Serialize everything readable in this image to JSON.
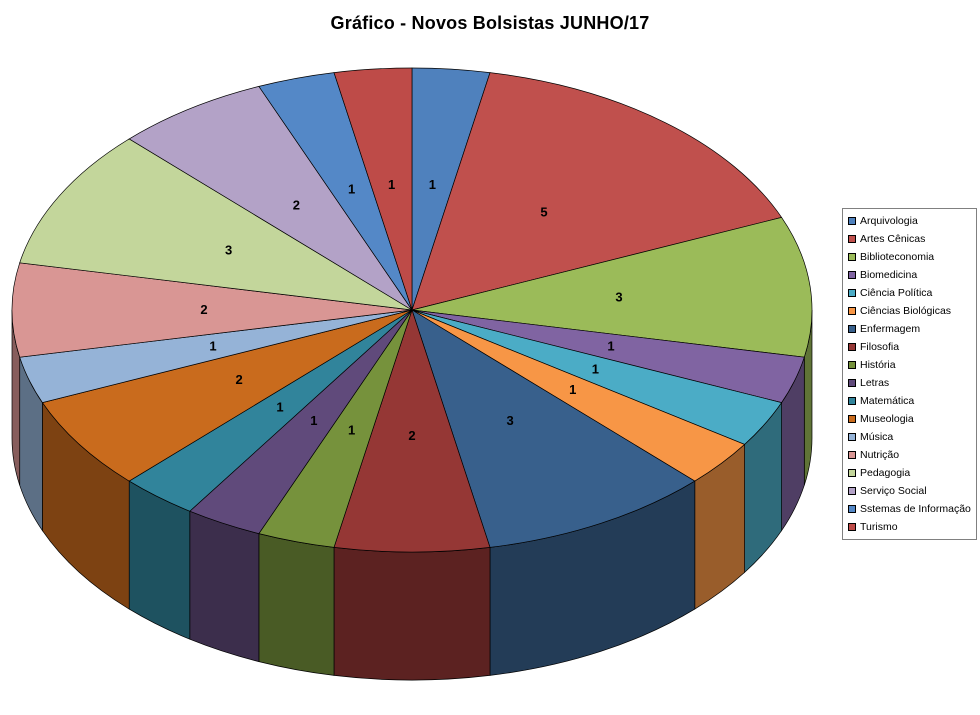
{
  "chart_data": {
    "type": "pie",
    "style": "3d",
    "title": "Gráfico - Novos Bolsistas JUNHO/17",
    "start_angle_deg": 0,
    "direction": "clockwise",
    "legend_position": "right",
    "data_labels": "values",
    "total": 32,
    "series": [
      {
        "label": "Arquivologia",
        "value": 1,
        "color": "#4F81BD"
      },
      {
        "label": "Artes Cênicas",
        "value": 5,
        "color": "#C0504D"
      },
      {
        "label": "Biblioteconomia",
        "value": 3,
        "color": "#9BBB59"
      },
      {
        "label": "Biomedicina",
        "value": 1,
        "color": "#8064A2"
      },
      {
        "label": "Ciência Política",
        "value": 1,
        "color": "#4BACC6"
      },
      {
        "label": "Ciências Biológicas",
        "value": 1,
        "color": "#F79646"
      },
      {
        "label": "Enfermagem",
        "value": 3,
        "color": "#38608C"
      },
      {
        "label": "Filosofia",
        "value": 2,
        "color": "#953735"
      },
      {
        "label": "História",
        "value": 1,
        "color": "#76923C"
      },
      {
        "label": "Letras",
        "value": 1,
        "color": "#604A7B"
      },
      {
        "label": "Matemática",
        "value": 1,
        "color": "#31849B"
      },
      {
        "label": "Museologia",
        "value": 2,
        "color": "#C96B1D"
      },
      {
        "label": "Música",
        "value": 1,
        "color": "#95B3D7"
      },
      {
        "label": "Nutrição",
        "value": 2,
        "color": "#D99694"
      },
      {
        "label": "Pedagogia",
        "value": 3,
        "color": "#C3D69B"
      },
      {
        "label": "Serviço Social",
        "value": 2,
        "color": "#B3A2C7"
      },
      {
        "label": "Sstemas de Informação",
        "value": 1,
        "color": "#5488C7"
      },
      {
        "label": "Turismo",
        "value": 1,
        "color": "#BE4B48"
      }
    ]
  }
}
